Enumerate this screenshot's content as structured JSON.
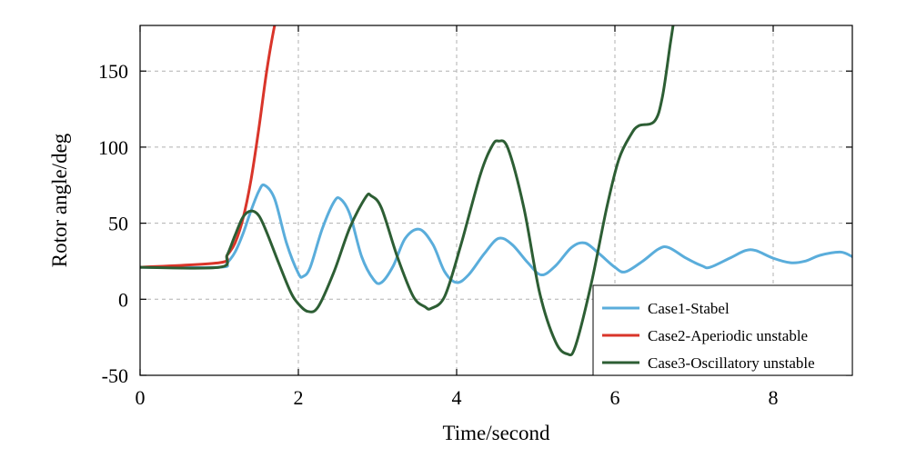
{
  "chart_data": {
    "type": "line",
    "xlabel": "Time/second",
    "ylabel": "Rotor angle/deg",
    "xlim": [
      0,
      9
    ],
    "ylim": [
      -50,
      180
    ],
    "xticks": [
      0,
      2,
      4,
      6,
      8
    ],
    "yticks": [
      -50,
      0,
      50,
      100,
      150
    ],
    "grid": true,
    "legend_position": "bottom-right",
    "series": [
      {
        "name": "Case1-Stabel",
        "color": "#5aaddb",
        "x": [
          0,
          1.0,
          1.1,
          1.2,
          1.3,
          1.4,
          1.5,
          1.57,
          1.7,
          1.85,
          2.0,
          2.06,
          2.15,
          2.3,
          2.45,
          2.53,
          2.65,
          2.8,
          2.95,
          3.05,
          3.2,
          3.35,
          3.53,
          3.7,
          3.85,
          4.0,
          4.15,
          4.35,
          4.53,
          4.7,
          4.9,
          5.07,
          5.25,
          5.45,
          5.62,
          5.8,
          6.0,
          6.13,
          6.35,
          6.55,
          6.68,
          6.9,
          7.1,
          7.2,
          7.45,
          7.65,
          7.78,
          8.0,
          8.22,
          8.4,
          8.6,
          8.85,
          9.0
        ],
        "y": [
          21,
          21,
          24,
          31,
          43,
          58,
          71,
          75,
          66,
          37,
          17,
          15,
          21,
          46,
          64,
          66,
          56,
          28,
          13,
          11,
          22,
          40,
          46,
          36,
          18,
          11,
          16,
          30,
          40,
          36,
          24,
          16,
          22,
          34,
          37,
          30,
          21,
          18,
          25,
          33,
          34,
          27,
          22,
          21,
          27,
          32,
          32,
          27,
          24,
          25,
          29,
          31,
          28
        ]
      },
      {
        "name": "Case2-Aperiodic unstable",
        "color": "#d9352a",
        "x": [
          0,
          1.0,
          1.1,
          1.2,
          1.3,
          1.4,
          1.5,
          1.6,
          1.7,
          1.74
        ],
        "y": [
          21,
          24,
          29,
          37,
          53,
          78,
          112,
          150,
          180,
          186
        ]
      },
      {
        "name": "Case3-Oscillatory unstable",
        "color": "#2d5e34",
        "x": [
          0,
          1.0,
          1.1,
          1.2,
          1.3,
          1.4,
          1.5,
          1.6,
          1.75,
          1.9,
          2.0,
          2.12,
          2.25,
          2.45,
          2.65,
          2.85,
          2.92,
          3.05,
          3.25,
          3.45,
          3.6,
          3.68,
          3.85,
          4.05,
          4.3,
          4.45,
          4.53,
          4.65,
          4.85,
          5.05,
          5.25,
          5.4,
          5.5,
          5.7,
          5.9,
          6.05,
          6.2,
          6.3,
          6.5,
          6.6,
          6.7,
          6.75
        ],
        "y": [
          21,
          21,
          29,
          42,
          54,
          58,
          55,
          44,
          24,
          5,
          -3,
          -8,
          -5,
          18,
          47,
          67,
          68,
          60,
          28,
          2,
          -5,
          -6,
          2,
          35,
          82,
          101,
          104,
          99,
          60,
          4,
          -28,
          -36,
          -31,
          10,
          61,
          92,
          108,
          114,
          117,
          133,
          168,
          185
        ]
      }
    ]
  }
}
